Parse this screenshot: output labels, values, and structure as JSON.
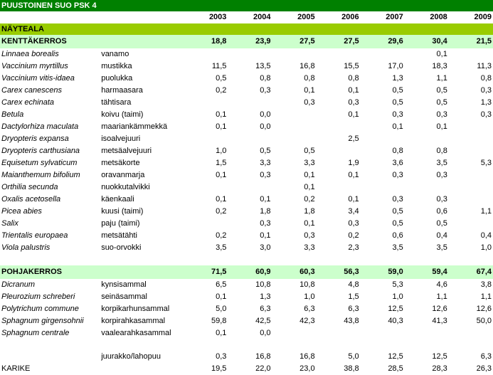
{
  "title": "PUUSTOINEN SUO PSK 4",
  "years": [
    "2003",
    "2004",
    "2005",
    "2006",
    "2007",
    "2008",
    "2009"
  ],
  "nayteala": "NÄYTEALA",
  "kentta": {
    "label": "KENTTÄKERROS",
    "totals": [
      "18,8",
      "23,9",
      "27,5",
      "27,5",
      "29,6",
      "30,4",
      "21,5"
    ],
    "rows": [
      {
        "lat": "Linnaea borealis",
        "fin": "vanamo",
        "v": [
          "",
          "",
          "",
          "",
          "",
          "0,1",
          ""
        ]
      },
      {
        "lat": "Vaccinium myrtillus",
        "fin": "mustikka",
        "v": [
          "11,5",
          "13,5",
          "16,8",
          "15,5",
          "17,0",
          "18,3",
          "11,3"
        ]
      },
      {
        "lat": "Vaccinium vitis-idaea",
        "fin": "puolukka",
        "v": [
          "0,5",
          "0,8",
          "0,8",
          "0,8",
          "1,3",
          "1,1",
          "0,8"
        ]
      },
      {
        "lat": "Carex canescens",
        "fin": "harmaasara",
        "v": [
          "0,2",
          "0,3",
          "0,1",
          "0,1",
          "0,5",
          "0,5",
          "0,3"
        ]
      },
      {
        "lat": "Carex echinata",
        "fin": "tähtisara",
        "v": [
          "",
          "",
          "0,3",
          "0,3",
          "0,5",
          "0,5",
          "1,3"
        ]
      },
      {
        "lat": "Betula",
        "fin": "koivu (taimi)",
        "v": [
          "0,1",
          "0,0",
          "",
          "0,1",
          "0,3",
          "0,3",
          "0,3"
        ]
      },
      {
        "lat": "Dactylorhiza maculata",
        "fin": "maariankämmekkä",
        "v": [
          "0,1",
          "0,0",
          "",
          "",
          "0,1",
          "0,1",
          ""
        ]
      },
      {
        "lat": "Dryopteris expansa",
        "fin": "isoalvejuuri",
        "v": [
          "",
          "",
          "",
          "2,5",
          "",
          "",
          ""
        ]
      },
      {
        "lat": "Dryopteris carthusiana",
        "fin": "metsäalvejuuri",
        "v": [
          "1,0",
          "0,5",
          "0,5",
          "",
          "0,8",
          "0,8",
          ""
        ]
      },
      {
        "lat": "Equisetum sylvaticum",
        "fin": "metsäkorte",
        "v": [
          "1,5",
          "3,3",
          "3,3",
          "1,9",
          "3,6",
          "3,5",
          "5,3"
        ]
      },
      {
        "lat": "Maianthemum bifolium",
        "fin": "oravanmarja",
        "v": [
          "0,1",
          "0,3",
          "0,1",
          "0,1",
          "0,3",
          "0,3",
          ""
        ]
      },
      {
        "lat": "Orthilia secunda",
        "fin": "nuokkutalvikki",
        "v": [
          "",
          "",
          "0,1",
          "",
          "",
          "",
          ""
        ]
      },
      {
        "lat": "Oxalis acetosella",
        "fin": "käenkaali",
        "v": [
          "0,1",
          "0,1",
          "0,2",
          "0,1",
          "0,3",
          "0,3",
          ""
        ]
      },
      {
        "lat": "Picea abies",
        "fin": "kuusi (taimi)",
        "v": [
          "0,2",
          "1,8",
          "1,8",
          "3,4",
          "0,5",
          "0,6",
          "1,1"
        ]
      },
      {
        "lat": "Salix",
        "fin": "paju (taimi)",
        "v": [
          "",
          "0,3",
          "0,1",
          "0,3",
          "0,5",
          "0,5",
          ""
        ]
      },
      {
        "lat": "Trientalis europaea",
        "fin": "metsätähti",
        "v": [
          "0,2",
          "0,1",
          "0,3",
          "0,2",
          "0,6",
          "0,4",
          "0,4"
        ]
      },
      {
        "lat": "Viola palustris",
        "fin": "suo-orvokki",
        "v": [
          "3,5",
          "3,0",
          "3,3",
          "2,3",
          "3,5",
          "3,5",
          "1,0"
        ]
      }
    ]
  },
  "pohja": {
    "label": "POHJAKERROS",
    "totals": [
      "71,5",
      "60,9",
      "60,3",
      "56,3",
      "59,0",
      "59,4",
      "67,4"
    ],
    "rows": [
      {
        "lat": "Dicranum",
        "fin": "kynsisammal",
        "v": [
          "6,5",
          "10,8",
          "10,8",
          "4,8",
          "5,3",
          "4,6",
          "3,8"
        ]
      },
      {
        "lat": "Pleurozium schreberi",
        "fin": "seinäsammal",
        "v": [
          "0,1",
          "1,3",
          "1,0",
          "1,5",
          "1,0",
          "1,1",
          "1,1"
        ]
      },
      {
        "lat": "Polytrichum commune",
        "fin": "korpikarhunsammal",
        "v": [
          "5,0",
          "6,3",
          "6,3",
          "6,3",
          "12,5",
          "12,6",
          "12,6"
        ]
      },
      {
        "lat": "Sphagnum girgensohnii",
        "fin": "korpirahkasammal",
        "v": [
          "59,8",
          "42,5",
          "42,3",
          "43,8",
          "40,3",
          "41,3",
          "50,0"
        ]
      },
      {
        "lat": "Sphagnum centrale",
        "fin": "vaalearahkasammal",
        "v": [
          "0,1",
          "0,0",
          "",
          "",
          "",
          "",
          ""
        ]
      }
    ]
  },
  "juurakko": {
    "label": "juurakko/lahopuu",
    "v": [
      "0,3",
      "16,8",
      "16,8",
      "5,0",
      "12,5",
      "12,5",
      "6,3"
    ]
  },
  "karike": {
    "label": "KARIKE",
    "v": [
      "19,5",
      "22,0",
      "23,0",
      "38,8",
      "28,5",
      "28,3",
      "26,3"
    ]
  }
}
